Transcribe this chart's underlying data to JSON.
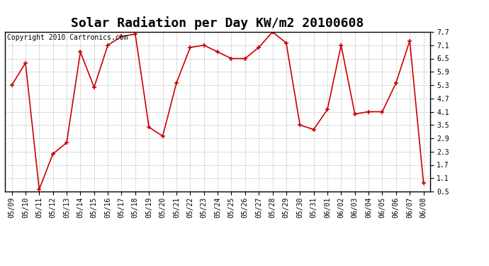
{
  "title": "Solar Radiation per Day KW/m2 20100608",
  "copyright": "Copyright 2010 Cartronics.com",
  "dates": [
    "05/09",
    "05/10",
    "05/11",
    "05/12",
    "05/13",
    "05/14",
    "05/15",
    "05/16",
    "05/17",
    "05/18",
    "05/19",
    "05/20",
    "05/21",
    "05/22",
    "05/23",
    "05/24",
    "05/25",
    "05/26",
    "05/27",
    "05/28",
    "05/29",
    "05/30",
    "05/31",
    "06/01",
    "06/02",
    "06/03",
    "06/04",
    "06/05",
    "06/06",
    "06/07",
    "06/08"
  ],
  "values": [
    5.3,
    6.3,
    0.6,
    2.2,
    2.7,
    6.8,
    5.2,
    7.1,
    7.5,
    7.6,
    3.4,
    3.0,
    5.4,
    7.0,
    7.1,
    6.8,
    6.5,
    6.5,
    7.0,
    7.7,
    7.2,
    3.5,
    3.3,
    4.2,
    7.1,
    4.0,
    4.1,
    4.1,
    5.4,
    7.3,
    0.9
  ],
  "line_color": "#cc0000",
  "marker": "+",
  "marker_size": 5,
  "background_color": "#ffffff",
  "plot_bg_color": "#ffffff",
  "grid_color": "#bbbbbb",
  "ylim": [
    0.5,
    7.7
  ],
  "yticks": [
    0.5,
    1.1,
    1.7,
    2.3,
    2.9,
    3.5,
    4.1,
    4.7,
    5.3,
    5.9,
    6.5,
    7.1,
    7.7
  ],
  "title_fontsize": 13,
  "tick_fontsize": 7,
  "copyright_fontsize": 7,
  "linewidth": 1.2
}
